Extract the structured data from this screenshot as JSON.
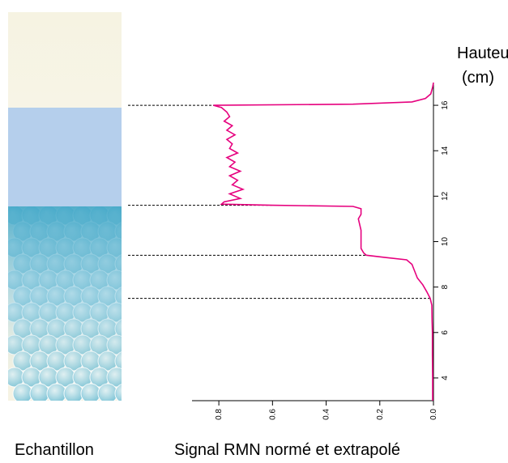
{
  "chart_data": {
    "type": "line",
    "sample_label": "Echantillon",
    "xlabel": "Signal RMN normé et extrapolé",
    "ylabel": [
      "Hauteur",
      "(cm)"
    ],
    "xlim": [
      0.9,
      0
    ],
    "xticks": [
      {
        "value": 0.8,
        "label": "0.8"
      },
      {
        "value": 0.6,
        "label": "0.6"
      },
      {
        "value": 0.4,
        "label": "0.4"
      },
      {
        "value": 0.2,
        "label": "0.2"
      },
      {
        "value": 0,
        "label": "0.0"
      }
    ],
    "ylim": [
      3,
      17
    ],
    "yticks": [
      4,
      6,
      8,
      10,
      12,
      14,
      16
    ],
    "reference_lines": [
      16,
      11.6,
      9.4,
      7.5
    ],
    "series": [
      {
        "color": "#e6007e",
        "values": [
          17,
          16.8,
          16.5,
          16.3,
          16.15,
          16.05,
          16.0,
          15.9,
          15.7,
          15.5,
          15.3,
          15.1,
          14.9,
          14.7,
          14.5,
          14.3,
          14.1,
          13.9,
          13.7,
          13.5,
          13.3,
          13.1,
          12.9,
          12.7,
          12.5,
          12.3,
          12.1,
          11.9,
          11.75,
          11.65,
          11.6,
          11.55,
          11.45,
          11.2,
          11.0,
          10.5,
          10.0,
          9.7,
          9.5,
          9.4,
          9.3,
          9.2,
          9.0,
          8.7,
          8.4,
          8.1,
          7.8,
          7.5,
          7.2,
          6.5,
          6.0,
          5.0,
          4.0,
          3.0
        ],
        "x": [
          0.0,
          0.003,
          0.01,
          0.03,
          0.08,
          0.3,
          0.82,
          0.79,
          0.77,
          0.76,
          0.78,
          0.75,
          0.77,
          0.74,
          0.77,
          0.75,
          0.76,
          0.73,
          0.77,
          0.74,
          0.76,
          0.72,
          0.76,
          0.73,
          0.75,
          0.71,
          0.76,
          0.72,
          0.78,
          0.79,
          0.6,
          0.3,
          0.27,
          0.27,
          0.28,
          0.27,
          0.27,
          0.27,
          0.26,
          0.25,
          0.18,
          0.1,
          0.08,
          0.07,
          0.06,
          0.04,
          0.025,
          0.012,
          0.006,
          0.005,
          0.004,
          0.004,
          0.003,
          0.003
        ]
      }
    ]
  }
}
